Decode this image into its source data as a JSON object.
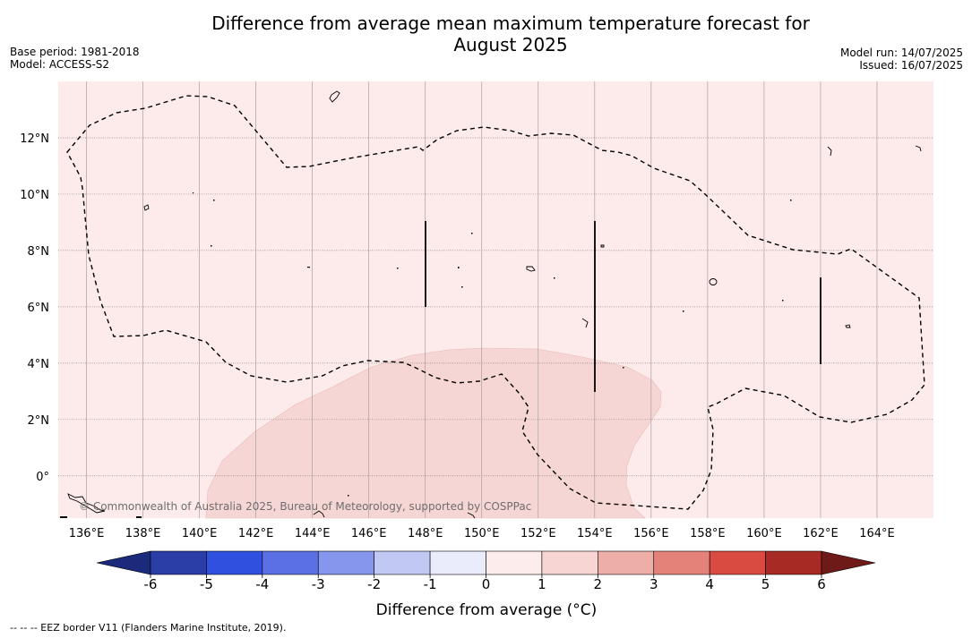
{
  "title": {
    "line1": "Difference from average mean maximum temperature forecast for",
    "line2": "August 2025"
  },
  "meta_left": {
    "base_period": "Base period: 1981-2018",
    "model": "Model: ACCESS-S2"
  },
  "meta_right": {
    "model_run": "Model run: 14/07/2025",
    "issued": "Issued: 16/07/2025"
  },
  "map": {
    "lon_range": [
      135,
      166
    ],
    "lat_range": [
      -1.5,
      14
    ],
    "lon_ticks": [
      "136°E",
      "138°E",
      "140°E",
      "142°E",
      "144°E",
      "146°E",
      "148°E",
      "150°E",
      "152°E",
      "154°E",
      "156°E",
      "158°E",
      "160°E",
      "162°E",
      "164°E"
    ],
    "lat_ticks": [
      "12°N",
      "10°N",
      "8°N",
      "6°N",
      "4°N",
      "2°N",
      "0°"
    ],
    "background_category": "0 to 1",
    "anomaly_region_category": "1 to 2",
    "credit": "© Commonwealth of Australia 2025, Bureau of Meteorology, supported by COSPPac"
  },
  "colorbar": {
    "labels": [
      "-6",
      "-5",
      "-4",
      "-3",
      "-2",
      "-1",
      "0",
      "1",
      "2",
      "3",
      "4",
      "5",
      "6"
    ],
    "colors": [
      "#1c2a7c",
      "#2b3ea8",
      "#3050e0",
      "#5a70e4",
      "#8596ec",
      "#c2c8f4",
      "#eaecfb",
      "#fcecec",
      "#f6d5d3",
      "#eeaea8",
      "#e4827a",
      "#d94a40",
      "#a82a24",
      "#6e1a18"
    ],
    "title": "Difference from average (°C)"
  },
  "footnote": "--  --  -- EEZ border V11 (Flanders Marine Institute, 2019)."
}
